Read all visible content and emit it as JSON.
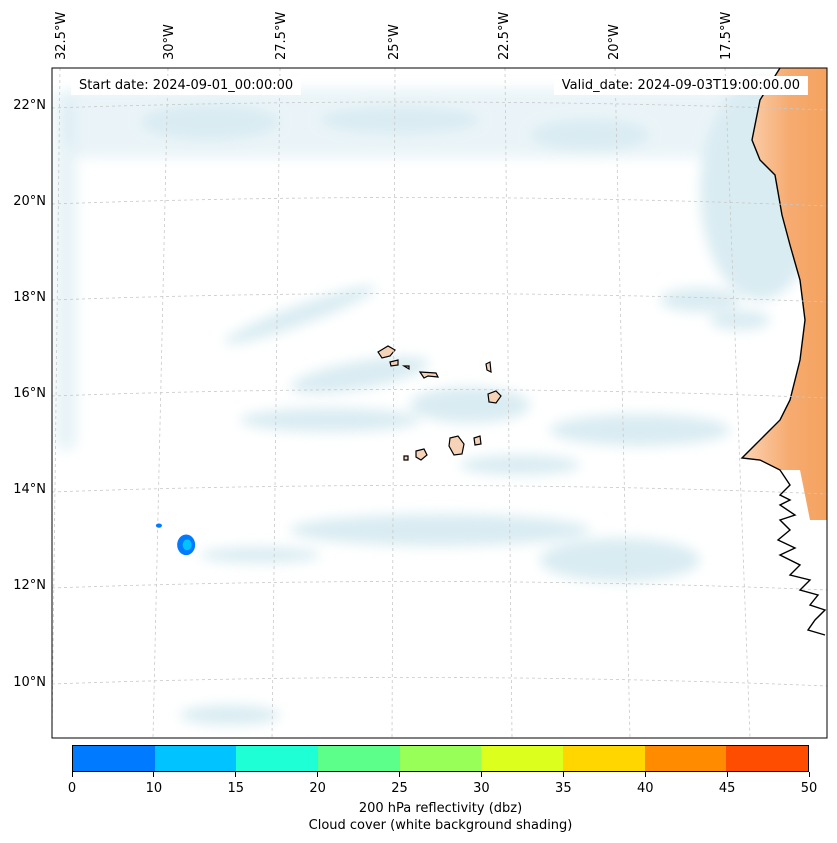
{
  "header": {
    "start_date": "Start date: 2024-09-01_00:00:00",
    "valid_date": "Valid_date: 2024-09-03T19:00:00.00"
  },
  "map": {
    "longitude_labels": [
      "32.5°W",
      "30°W",
      "27.5°W",
      "25°W",
      "22.5°W",
      "20°W",
      "17.5°W"
    ],
    "latitude_labels": [
      "22°N",
      "20°N",
      "18°N",
      "16°N",
      "14°N",
      "12°N",
      "10°N"
    ],
    "reflectivity_cells": [
      {
        "name": "echo-main",
        "lon": -29.6,
        "lat": 12.9,
        "dbz": 12
      },
      {
        "name": "echo-small",
        "lon": -30.2,
        "lat": 13.3,
        "dbz": 8
      }
    ]
  },
  "colorbar": {
    "ticks": [
      "0",
      "10",
      "15",
      "20",
      "25",
      "30",
      "35",
      "40",
      "45",
      "50"
    ],
    "colors": [
      "#007bff",
      "#00c3ff",
      "#1fffd6",
      "#5cff8a",
      "#97ff58",
      "#dcff1e",
      "#ffd600",
      "#ff8c00",
      "#ff4d00"
    ],
    "label": "200 hPa reflectivity (dbz)",
    "sublabel": "Cloud cover (white background shading)"
  },
  "colors": {
    "land": "#f4a460",
    "cloud": "#cde6ee",
    "coast": "#000000",
    "grid": "#c8c8c8"
  }
}
